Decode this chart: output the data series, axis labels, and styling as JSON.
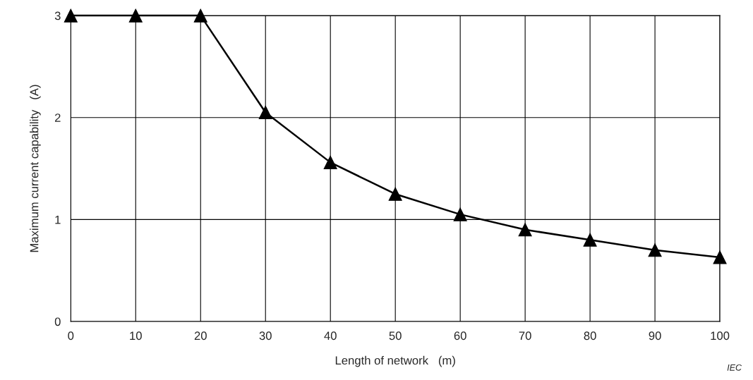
{
  "chart_data": {
    "type": "line",
    "xlabel": "Length of network   (m)",
    "ylabel": "Maximum current capability   (A)",
    "x": [
      0,
      10,
      20,
      30,
      40,
      50,
      60,
      70,
      80,
      90,
      100
    ],
    "series": [
      {
        "color": "#000000",
        "values": [
          3,
          3,
          3,
          2.05,
          1.56,
          1.25,
          1.05,
          0.9,
          0.8,
          0.7,
          0.63
        ]
      }
    ],
    "xlim": [
      0,
      100
    ],
    "xticks": [
      0,
      10,
      20,
      30,
      40,
      50,
      60,
      70,
      80,
      90,
      100
    ],
    "ylim": [
      0,
      3
    ],
    "yticks": [
      0,
      1,
      2,
      3
    ],
    "grid": true,
    "marker": "triangle",
    "line_style": "solid",
    "annotations": [
      "IEC"
    ]
  }
}
